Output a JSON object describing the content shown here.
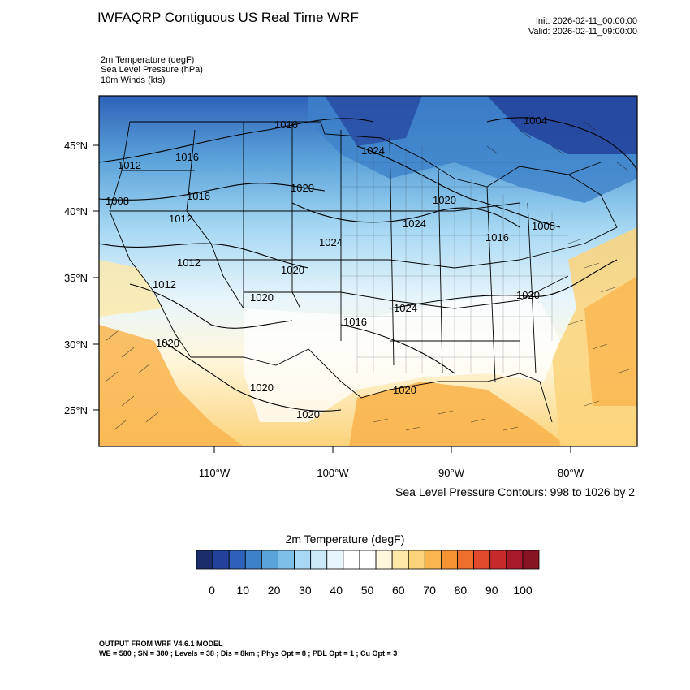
{
  "header": {
    "title": "IWFAQRP Contiguous US Real Time WRF",
    "init": "Init: 2026-02-11_00:00:00",
    "valid": "Valid: 2026-02-11_09:00:00",
    "variables": [
      "2m Temperature   (degF)",
      "Sea Level Pressure   (hPa)",
      "10m Winds   (kts)"
    ]
  },
  "map": {
    "lat_labels": [
      "45°N",
      "40°N",
      "35°N",
      "30°N",
      "25°N"
    ],
    "lon_labels": [
      "110°W",
      "100°W",
      "90°W",
      "80°W"
    ],
    "isobar_labels": [
      {
        "text": "1016"
      },
      {
        "text": "1004"
      },
      {
        "text": "1024"
      },
      {
        "text": "1016"
      },
      {
        "text": "1012"
      },
      {
        "text": "1020"
      },
      {
        "text": "1016"
      },
      {
        "text": "1008"
      },
      {
        "text": "1020"
      },
      {
        "text": "1012"
      },
      {
        "text": "1024"
      },
      {
        "text": "1008"
      },
      {
        "text": "1016"
      },
      {
        "text": "1024"
      },
      {
        "text": "1020"
      },
      {
        "text": "1012"
      },
      {
        "text": "1012"
      },
      {
        "text": "1020"
      },
      {
        "text": "1020"
      },
      {
        "text": "1024"
      },
      {
        "text": "1016"
      },
      {
        "text": "1020"
      },
      {
        "text": "1020"
      },
      {
        "text": "1020"
      },
      {
        "text": "1020"
      }
    ],
    "contour_note": "Sea Level Pressure Contours: 998 to 1026 by 2"
  },
  "colorbar": {
    "title": "2m Temperature  (degF)",
    "colors": [
      "#1b2e6b",
      "#23419a",
      "#2e62b8",
      "#3d82c9",
      "#5aa2da",
      "#7ebfe8",
      "#a6d8f3",
      "#c9e8f8",
      "#e8f5fb",
      "#ffffff",
      "#ffffff",
      "#fff7dd",
      "#fde8a8",
      "#fbd37a",
      "#f9b54f",
      "#f69434",
      "#ee6f2b",
      "#e14a2c",
      "#c72a2a",
      "#a7192a",
      "#861423"
    ],
    "tick_labels": [
      "0",
      "10",
      "20",
      "30",
      "40",
      "50",
      "60",
      "70",
      "80",
      "90",
      "100"
    ]
  },
  "footer": {
    "line1": "OUTPUT FROM WRF V4.6.1 MODEL",
    "line2": "WE = 580 ; SN = 380 ; Levels = 38 ; Dis = 8km ; Phys Opt = 8 ; PBL Opt = 1 ; Cu Opt = 3"
  }
}
